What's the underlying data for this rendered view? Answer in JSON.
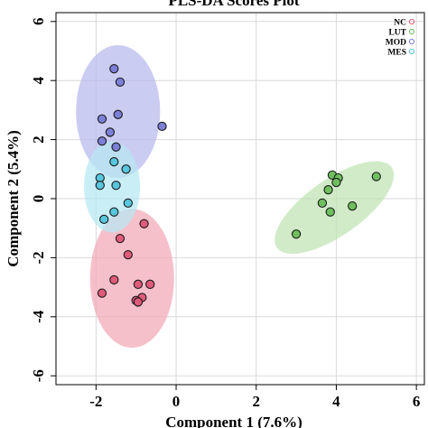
{
  "chart_data": {
    "type": "scatter",
    "title": "PLS-DA Scores Plot",
    "xlabel": "Component 1 (7.6%)",
    "ylabel": "Component 2 (5.4%)",
    "xlim": [
      -3.0,
      6.2
    ],
    "ylim": [
      -6.3,
      6.3
    ],
    "x_ticks": [
      -2,
      0,
      2,
      4,
      6
    ],
    "y_ticks": [
      -6,
      -4,
      -2,
      0,
      2,
      4,
      6
    ],
    "x_tick_labels": [
      "-2",
      "0",
      "2",
      "4",
      "6"
    ],
    "y_tick_labels": [
      "-6",
      "-4",
      "-2",
      "0",
      "2",
      "4",
      "6"
    ],
    "grid": true,
    "legend_position": "top-right",
    "series": [
      {
        "name": "NC",
        "color": "#e05a7a",
        "ellipse_color": "#f2a7b5",
        "ellipse": {
          "cx": -1.1,
          "cy": -2.7,
          "rx": 1.05,
          "ry": 2.35,
          "angle": 0
        },
        "points": [
          {
            "x": -0.8,
            "y": -0.85
          },
          {
            "x": -1.4,
            "y": -1.35
          },
          {
            "x": -1.2,
            "y": -1.9
          },
          {
            "x": -1.55,
            "y": -2.75
          },
          {
            "x": -0.95,
            "y": -2.9
          },
          {
            "x": -0.65,
            "y": -2.9
          },
          {
            "x": -1.85,
            "y": -3.2
          },
          {
            "x": -0.85,
            "y": -3.35
          },
          {
            "x": -1.0,
            "y": -3.45
          },
          {
            "x": -0.95,
            "y": -3.5
          }
        ]
      },
      {
        "name": "LUT",
        "color": "#6fbf5f",
        "ellipse_color": "#bfe3b4",
        "ellipse": {
          "cx": 3.95,
          "cy": -0.3,
          "rx": 1.75,
          "ry": 0.95,
          "angle": 35
        },
        "points": [
          {
            "x": 3.9,
            "y": 0.8
          },
          {
            "x": 4.05,
            "y": 0.7
          },
          {
            "x": 5.0,
            "y": 0.75
          },
          {
            "x": 4.0,
            "y": 0.55
          },
          {
            "x": 3.8,
            "y": 0.3
          },
          {
            "x": 3.65,
            "y": -0.15
          },
          {
            "x": 4.4,
            "y": -0.25
          },
          {
            "x": 3.85,
            "y": -0.45
          },
          {
            "x": 3.0,
            "y": -1.2
          }
        ]
      },
      {
        "name": "MOD",
        "color": "#7b7fd6",
        "ellipse_color": "#b7b8ec",
        "ellipse": {
          "cx": -1.45,
          "cy": 2.95,
          "rx": 1.05,
          "ry": 2.25,
          "angle": 0
        },
        "points": [
          {
            "x": -1.55,
            "y": 4.4
          },
          {
            "x": -1.4,
            "y": 3.95
          },
          {
            "x": -1.45,
            "y": 2.85
          },
          {
            "x": -1.85,
            "y": 2.7
          },
          {
            "x": -0.35,
            "y": 2.45
          },
          {
            "x": -1.65,
            "y": 2.25
          },
          {
            "x": -1.85,
            "y": 1.95
          },
          {
            "x": -1.5,
            "y": 1.75
          }
        ]
      },
      {
        "name": "MES",
        "color": "#58c6dc",
        "ellipse_color": "#b6e8f3",
        "ellipse": {
          "cx": -1.6,
          "cy": 0.4,
          "rx": 0.7,
          "ry": 1.55,
          "angle": 0
        },
        "points": [
          {
            "x": -1.55,
            "y": 1.25
          },
          {
            "x": -1.25,
            "y": 1.0
          },
          {
            "x": -1.9,
            "y": 0.7
          },
          {
            "x": -1.9,
            "y": 0.45
          },
          {
            "x": -1.5,
            "y": 0.45
          },
          {
            "x": -1.2,
            "y": -0.15
          },
          {
            "x": -1.55,
            "y": -0.45
          },
          {
            "x": -1.8,
            "y": -0.7
          }
        ]
      }
    ]
  }
}
